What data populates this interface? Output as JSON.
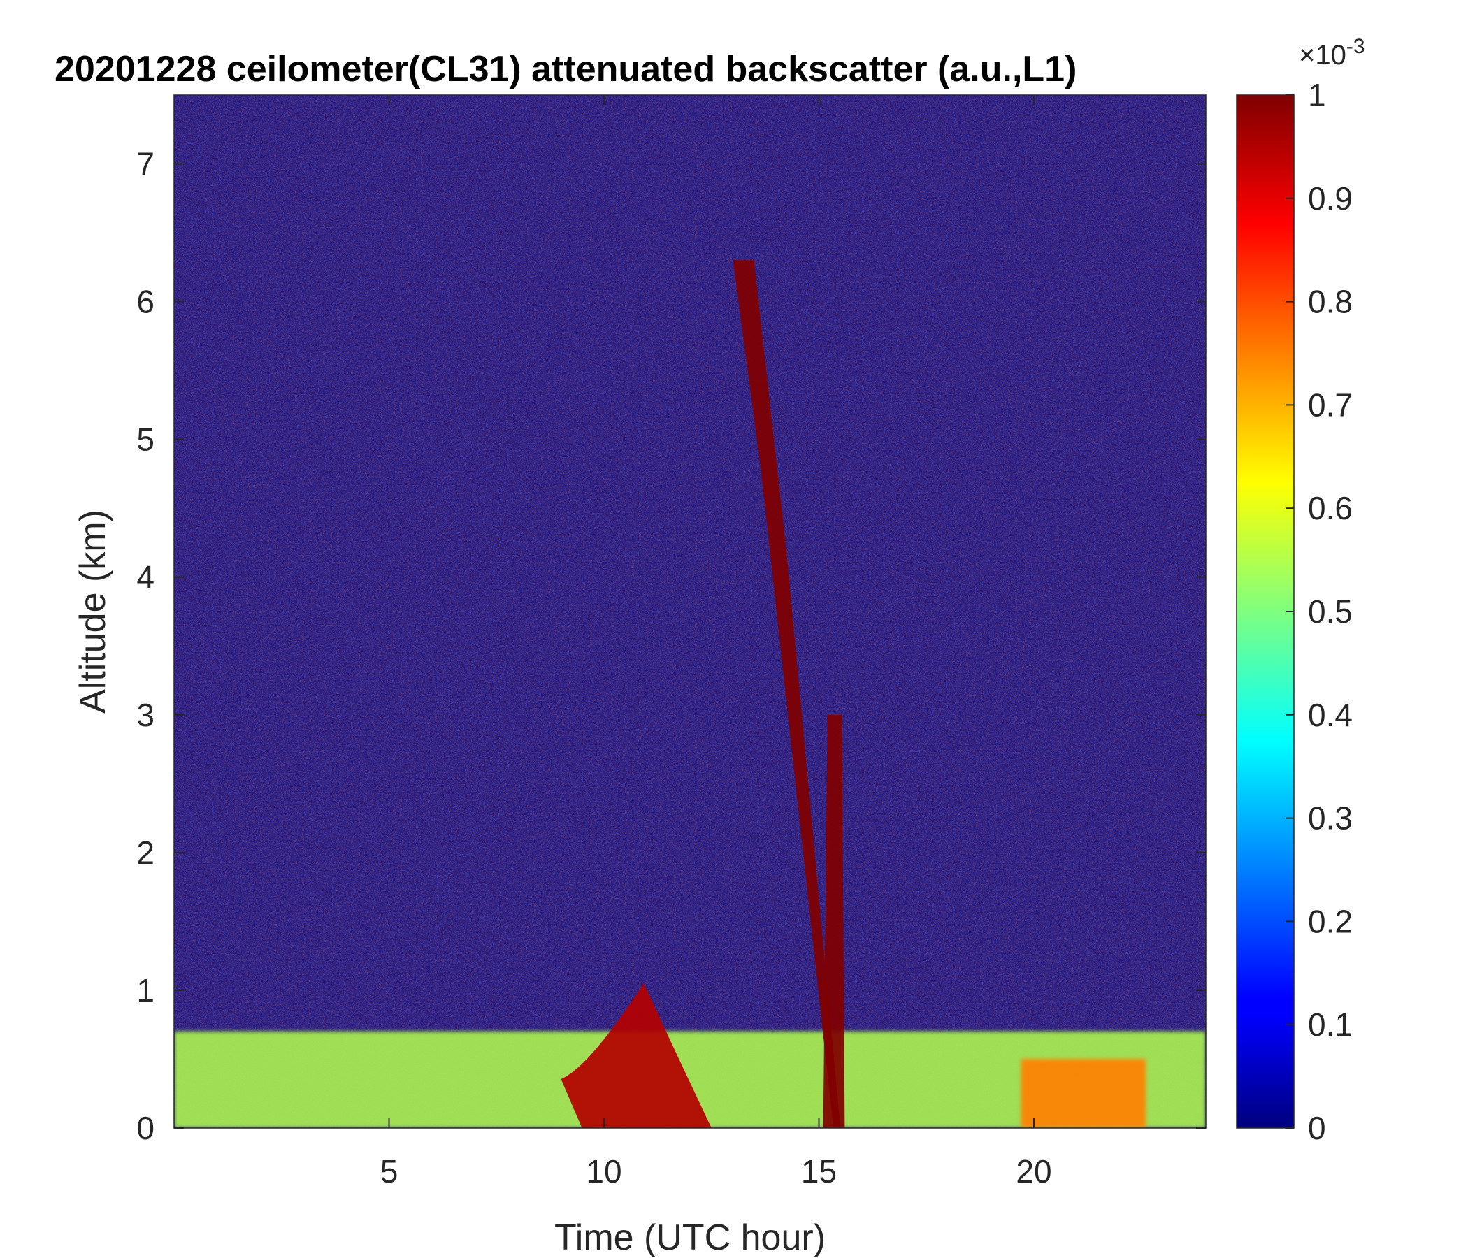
{
  "chart_data": {
    "type": "heatmap",
    "title": "20201228 ceilometer(CL31) attenuated backscatter (a.u.,L1)",
    "xlabel": "Time (UTC hour)",
    "ylabel": "Altitude (km)",
    "xlim": [
      0,
      24
    ],
    "ylim": [
      0,
      7.5
    ],
    "xticks": [
      5,
      10,
      15,
      20
    ],
    "yticks": [
      0,
      1,
      2,
      3,
      4,
      5,
      6,
      7
    ],
    "colormap": "jet",
    "colorbar": {
      "clim": [
        0,
        1
      ],
      "ticks": [
        0,
        0.1,
        0.2,
        0.3,
        0.4,
        0.5,
        0.6,
        0.7,
        0.8,
        0.9,
        1
      ],
      "tick_labels": [
        "0",
        "0.1",
        "0.2",
        "0.3",
        "0.4",
        "0.5",
        "0.6",
        "0.7",
        "0.8",
        "0.9",
        "1"
      ],
      "scale_base": "×10",
      "scale_exponent": "-3"
    },
    "features": [
      {
        "kind": "aerosol_layer",
        "x_range": [
          0,
          24
        ],
        "top_km": 0.7,
        "level": 0.55
      },
      {
        "kind": "cloud",
        "x_range": [
          9,
          12.5
        ],
        "top_km": 1.05,
        "level": 0.95
      },
      {
        "kind": "precipitation_streak",
        "x_range": [
          13,
          15.5
        ],
        "top_km": 6.3,
        "level": 1.0
      },
      {
        "kind": "precipitation_column",
        "x_range": [
          15.1,
          15.6
        ],
        "top_km": 3.0,
        "level": 1.0
      },
      {
        "kind": "aerosol_patch",
        "x_range": [
          19.7,
          22.6
        ],
        "top_km": 0.5,
        "level": 0.75
      }
    ]
  }
}
